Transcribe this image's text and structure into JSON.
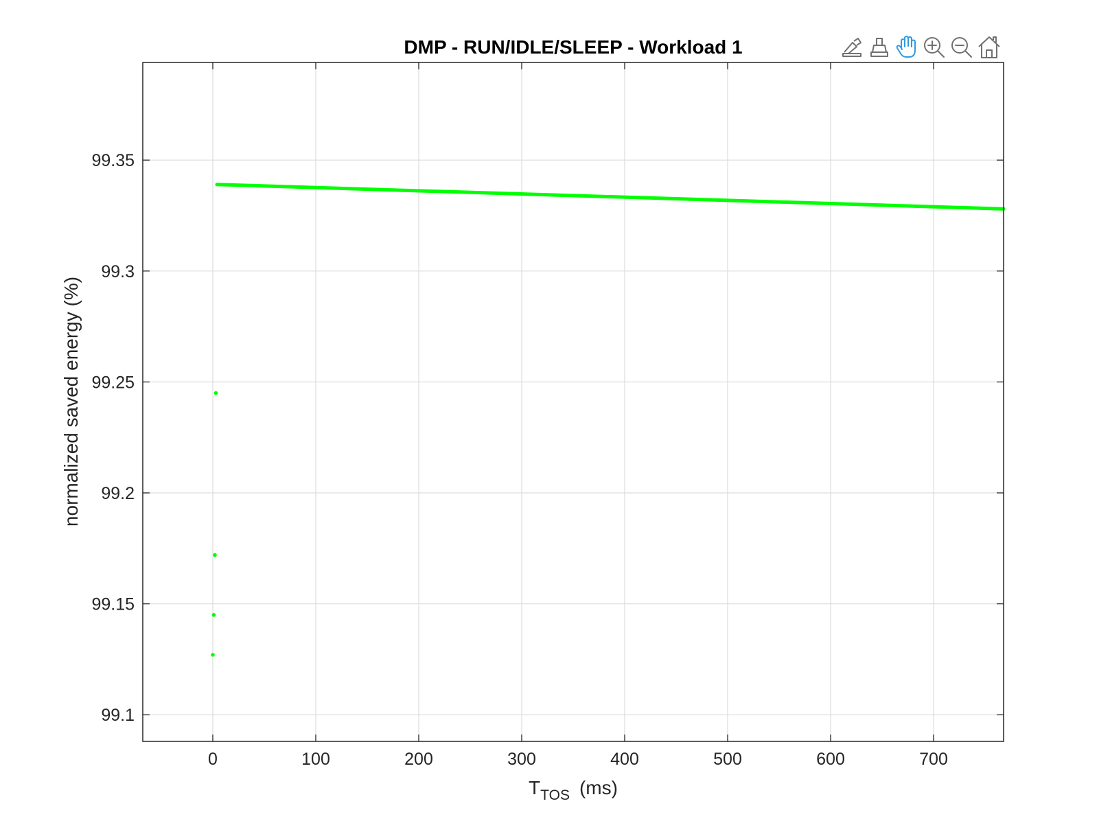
{
  "chart_data": {
    "type": "scatter",
    "title": "DMP - RUN/IDLE/SLEEP - Workload 1",
    "xlabel": {
      "main": "T",
      "sub": "TOS",
      "unit": "(ms)"
    },
    "ylabel": "normalized saved energy (%)",
    "xlim": [
      -68,
      768
    ],
    "ylim": [
      99.088,
      99.394
    ],
    "xticks": [
      0,
      100,
      200,
      300,
      400,
      500,
      600,
      700
    ],
    "xtick_labels": [
      "0",
      "100",
      "200",
      "300",
      "400",
      "500",
      "600",
      "700"
    ],
    "yticks": [
      99.1,
      99.15,
      99.2,
      99.25,
      99.3,
      99.35
    ],
    "ytick_labels": [
      "99.1",
      "99.15",
      "99.2",
      "99.25",
      "99.3",
      "99.35"
    ],
    "grid": true,
    "series": [
      {
        "color": "#00ff00",
        "isolated_points": [
          {
            "x": 0,
            "y": 99.127
          },
          {
            "x": 1,
            "y": 99.145
          },
          {
            "x": 2,
            "y": 99.172
          },
          {
            "x": 3,
            "y": 99.245
          }
        ],
        "dense_trend": {
          "x_start": 4,
          "y_start": 99.339,
          "x_end": 768,
          "y_end": 99.328
        }
      }
    ]
  },
  "toolbar": {
    "buttons": [
      {
        "name": "brush-icon",
        "active": false
      },
      {
        "name": "data-tips-icon",
        "active": false
      },
      {
        "name": "pan-hand-icon",
        "active": true
      },
      {
        "name": "zoom-in-icon",
        "active": false
      },
      {
        "name": "zoom-out-icon",
        "active": false
      },
      {
        "name": "home-icon",
        "active": false
      }
    ],
    "active_color": "#2f9bde",
    "inactive_color": "#707070"
  }
}
